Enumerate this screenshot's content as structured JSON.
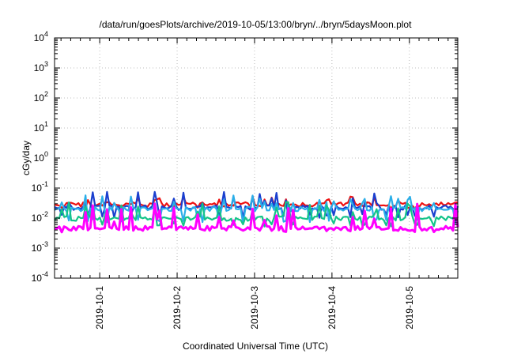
{
  "chart_data": {
    "type": "line",
    "title": "/data/run/goesPlots/archive/2019-10-05/13:00/bryn/../bryn/5daysMoon.plot",
    "xlabel": "Coordinated Universal Time (UTC)",
    "ylabel": "cGy/day",
    "yscale": "log",
    "ylim": [
      0.0001,
      10000
    ],
    "xlim": [
      "2019-09-30T10:00",
      "2019-10-05T15:00"
    ],
    "yticks": [
      {
        "value": 0.0001,
        "base": "10",
        "exp": "-4"
      },
      {
        "value": 0.001,
        "base": "10",
        "exp": "-3"
      },
      {
        "value": 0.01,
        "base": "10",
        "exp": "-2"
      },
      {
        "value": 0.1,
        "base": "10",
        "exp": "-1"
      },
      {
        "value": 1,
        "base": "10",
        "exp": "0"
      },
      {
        "value": 10,
        "base": "10",
        "exp": "1"
      },
      {
        "value": 100,
        "base": "10",
        "exp": "2"
      },
      {
        "value": 1000,
        "base": "10",
        "exp": "3"
      },
      {
        "value": 10000,
        "base": "10",
        "exp": "4"
      }
    ],
    "xticks": [
      "2019-10-1",
      "2019-10-2",
      "2019-10-3",
      "2019-10-4",
      "2019-10-5"
    ],
    "grid": true,
    "legend": "none",
    "series": [
      {
        "color": "#ee1111",
        "baseline": 0.028,
        "low": 0.024,
        "spike": 0.055
      },
      {
        "color": "#1a3fcf",
        "baseline": 0.022,
        "low": 0.012,
        "spike": 0.075
      },
      {
        "color": "#2aaee8",
        "baseline": 0.02,
        "low": 0.008,
        "spike": 0.06
      },
      {
        "color": "#14c48a",
        "baseline": 0.0095,
        "low": 0.006,
        "spike": 0.035
      },
      {
        "color": "#ff00ff",
        "baseline": 0.0045,
        "low": 0.004,
        "spike": 0.03
      }
    ]
  }
}
